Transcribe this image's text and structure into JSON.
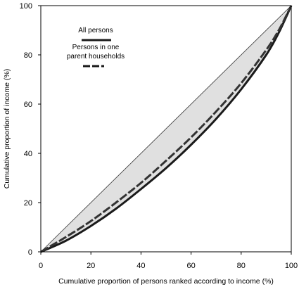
{
  "chart_data": {
    "type": "line",
    "title": "",
    "xlabel": "Cumulative proportion of persons ranked according to income (%)",
    "ylabel": "Cumulative proportion of income (%)",
    "xlim": [
      0,
      100
    ],
    "ylim": [
      0,
      100
    ],
    "xticks": [
      0,
      20,
      40,
      60,
      80,
      100
    ],
    "yticks": [
      0,
      20,
      40,
      60,
      80,
      100
    ],
    "grid": false,
    "legend_position": "top-left",
    "shaded_area": "between equality line and curves",
    "colors": {
      "shade": "#e0e0e0",
      "curve": "#1a1a1a",
      "equality_line": "#333333"
    },
    "series": [
      {
        "name": "",
        "style": "thin-solid",
        "x": [
          0,
          100
        ],
        "y": [
          0,
          100
        ]
      },
      {
        "name": "All persons",
        "style": "thick-solid",
        "x": [
          0,
          10,
          20,
          30,
          40,
          50,
          60,
          70,
          80,
          90,
          95,
          100
        ],
        "y": [
          0,
          4.5,
          10.5,
          17.5,
          25.5,
          34,
          43.5,
          54,
          66,
          80,
          89,
          100
        ]
      },
      {
        "name": "Persons in one parent households",
        "style": "thick-dashed",
        "x": [
          0,
          10,
          20,
          30,
          40,
          50,
          60,
          70,
          80,
          90,
          95,
          100
        ],
        "y": [
          0,
          6,
          12.5,
          20,
          28,
          37,
          46.5,
          57,
          68.5,
          82,
          90,
          100
        ]
      }
    ]
  }
}
